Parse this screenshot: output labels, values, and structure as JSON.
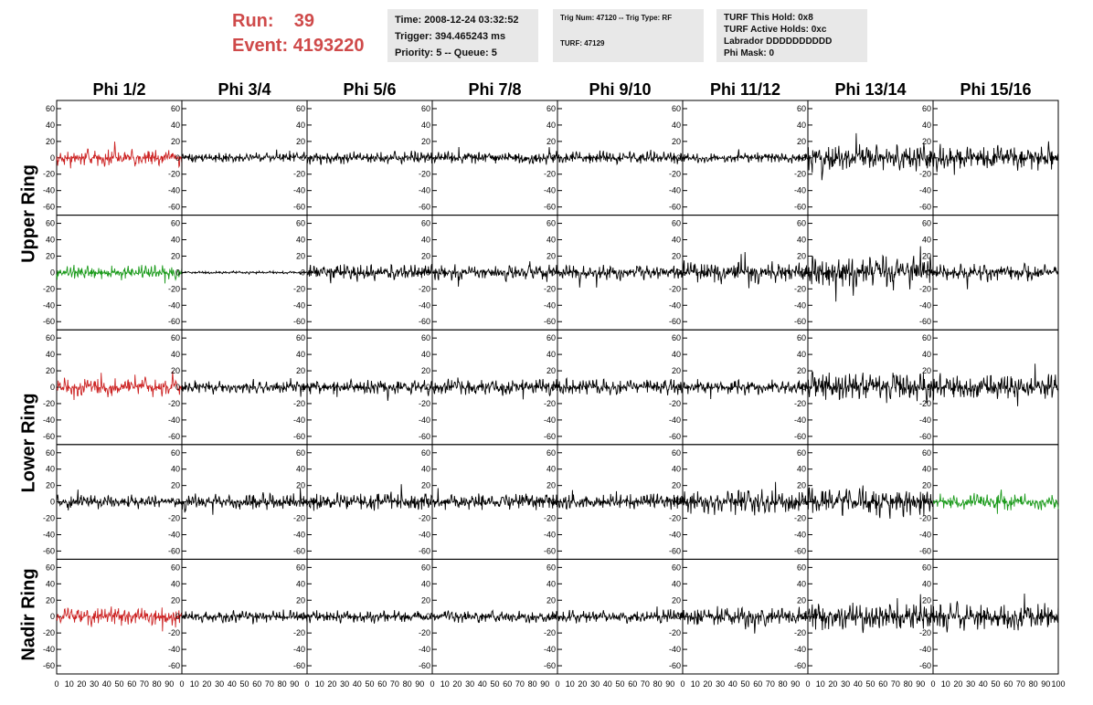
{
  "header": {
    "run_label": "Run:",
    "run_value": "39",
    "event_label": "Event:",
    "event_value": "4193220",
    "time": "Time: 2008-12-24 03:32:52",
    "trigger": "Trigger: 394.465243 ms",
    "priority": "Priority: 5 -- Queue: 5",
    "trig_num": "Trig Num: 47120 -- Trig Type: RF",
    "turf": "TURF: 47129",
    "turf_this_hold": "TURF This Hold: 0x8",
    "turf_active_holds": "TURF Active Holds: 0xc",
    "labrador": "Labrador DDDDDDDDDD",
    "phi_mask": "Phi Mask: 0"
  },
  "columns": [
    "Phi 1/2",
    "Phi 3/4",
    "Phi 5/6",
    "Phi 7/8",
    "Phi 9/10",
    "Phi 11/12",
    "Phi 13/14",
    "Phi 15/16"
  ],
  "rings": [
    "Upper Ring",
    "Lower Ring",
    "Nadir Ring"
  ],
  "y_ticks": [
    "60",
    "40",
    "20",
    "0",
    "-20",
    "-40",
    "-60"
  ],
  "x_ticks": [
    "0",
    "10",
    "20",
    "30",
    "40",
    "50",
    "60",
    "70",
    "80",
    "90",
    "100"
  ],
  "chart_data": {
    "type": "line",
    "ylim": [
      -70,
      70
    ],
    "xlim": [
      0,
      100
    ],
    "colors": {
      "red": "#cc2222",
      "green": "#1a9a1a",
      "black": "#000000"
    },
    "panels": [
      {
        "row": 0,
        "col": 0,
        "color": "red",
        "amplitude": 20
      },
      {
        "row": 0,
        "col": 1,
        "color": "black",
        "amplitude": 12
      },
      {
        "row": 0,
        "col": 2,
        "color": "black",
        "amplitude": 15
      },
      {
        "row": 0,
        "col": 3,
        "color": "black",
        "amplitude": 15
      },
      {
        "row": 0,
        "col": 4,
        "color": "black",
        "amplitude": 15
      },
      {
        "row": 0,
        "col": 5,
        "color": "black",
        "amplitude": 12
      },
      {
        "row": 0,
        "col": 6,
        "color": "black",
        "amplitude": 32
      },
      {
        "row": 0,
        "col": 7,
        "color": "black",
        "amplitude": 30
      },
      {
        "row": 1,
        "col": 0,
        "color": "green",
        "amplitude": 18
      },
      {
        "row": 1,
        "col": 1,
        "color": "black",
        "amplitude": 3
      },
      {
        "row": 1,
        "col": 2,
        "color": "black",
        "amplitude": 20
      },
      {
        "row": 1,
        "col": 3,
        "color": "black",
        "amplitude": 18
      },
      {
        "row": 1,
        "col": 4,
        "color": "black",
        "amplitude": 18
      },
      {
        "row": 1,
        "col": 5,
        "color": "black",
        "amplitude": 25
      },
      {
        "row": 1,
        "col": 6,
        "color": "black",
        "amplitude": 40
      },
      {
        "row": 1,
        "col": 7,
        "color": "black",
        "amplitude": 20
      },
      {
        "row": 2,
        "col": 0,
        "color": "red",
        "amplitude": 22
      },
      {
        "row": 2,
        "col": 1,
        "color": "black",
        "amplitude": 14
      },
      {
        "row": 2,
        "col": 2,
        "color": "black",
        "amplitude": 18
      },
      {
        "row": 2,
        "col": 3,
        "color": "black",
        "amplitude": 20
      },
      {
        "row": 2,
        "col": 4,
        "color": "black",
        "amplitude": 20
      },
      {
        "row": 2,
        "col": 5,
        "color": "black",
        "amplitude": 18
      },
      {
        "row": 2,
        "col": 6,
        "color": "black",
        "amplitude": 35
      },
      {
        "row": 2,
        "col": 7,
        "color": "black",
        "amplitude": 30
      },
      {
        "row": 3,
        "col": 0,
        "color": "black",
        "amplitude": 15
      },
      {
        "row": 3,
        "col": 1,
        "color": "black",
        "amplitude": 20
      },
      {
        "row": 3,
        "col": 2,
        "color": "black",
        "amplitude": 22
      },
      {
        "row": 3,
        "col": 3,
        "color": "black",
        "amplitude": 20
      },
      {
        "row": 3,
        "col": 4,
        "color": "black",
        "amplitude": 20
      },
      {
        "row": 3,
        "col": 5,
        "color": "black",
        "amplitude": 28
      },
      {
        "row": 3,
        "col": 6,
        "color": "black",
        "amplitude": 35
      },
      {
        "row": 3,
        "col": 7,
        "color": "green",
        "amplitude": 20
      },
      {
        "row": 4,
        "col": 0,
        "color": "red",
        "amplitude": 22
      },
      {
        "row": 4,
        "col": 1,
        "color": "black",
        "amplitude": 14
      },
      {
        "row": 4,
        "col": 2,
        "color": "black",
        "amplitude": 15
      },
      {
        "row": 4,
        "col": 3,
        "color": "black",
        "amplitude": 15
      },
      {
        "row": 4,
        "col": 4,
        "color": "black",
        "amplitude": 15
      },
      {
        "row": 4,
        "col": 5,
        "color": "black",
        "amplitude": 22
      },
      {
        "row": 4,
        "col": 6,
        "color": "black",
        "amplitude": 35
      },
      {
        "row": 4,
        "col": 7,
        "color": "black",
        "amplitude": 32
      }
    ]
  }
}
